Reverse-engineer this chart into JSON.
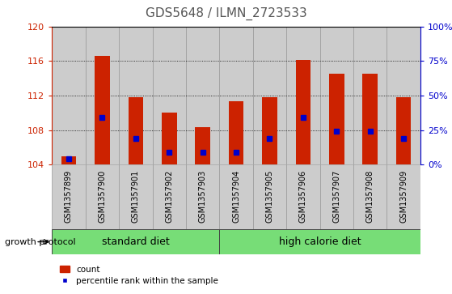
{
  "title": "GDS5648 / ILMN_2723533",
  "samples": [
    "GSM1357899",
    "GSM1357900",
    "GSM1357901",
    "GSM1357902",
    "GSM1357903",
    "GSM1357904",
    "GSM1357905",
    "GSM1357906",
    "GSM1357907",
    "GSM1357908",
    "GSM1357909"
  ],
  "counts": [
    105.0,
    116.6,
    111.8,
    110.0,
    108.3,
    111.3,
    111.8,
    116.1,
    114.5,
    114.5,
    111.8
  ],
  "percentiles": [
    4,
    34,
    19,
    9,
    9,
    9,
    19,
    34,
    24,
    24,
    19
  ],
  "ymin": 104,
  "ymax": 120,
  "yticks": [
    104,
    108,
    112,
    116,
    120
  ],
  "right_yticks": [
    0,
    25,
    50,
    75,
    100
  ],
  "bar_color": "#cc2200",
  "marker_color": "#0000cc",
  "bar_width": 0.45,
  "standard_diet_count": 5,
  "high_calorie_diet_count": 6,
  "group_label_standard": "standard diet",
  "group_label_high": "high calorie diet",
  "growth_protocol_label": "growth protocol",
  "legend_count": "count",
  "legend_percentile": "percentile rank within the sample",
  "sample_box_color": "#cccccc",
  "group_box_color": "#77dd77",
  "title_color": "#555555",
  "title_fontsize": 11
}
